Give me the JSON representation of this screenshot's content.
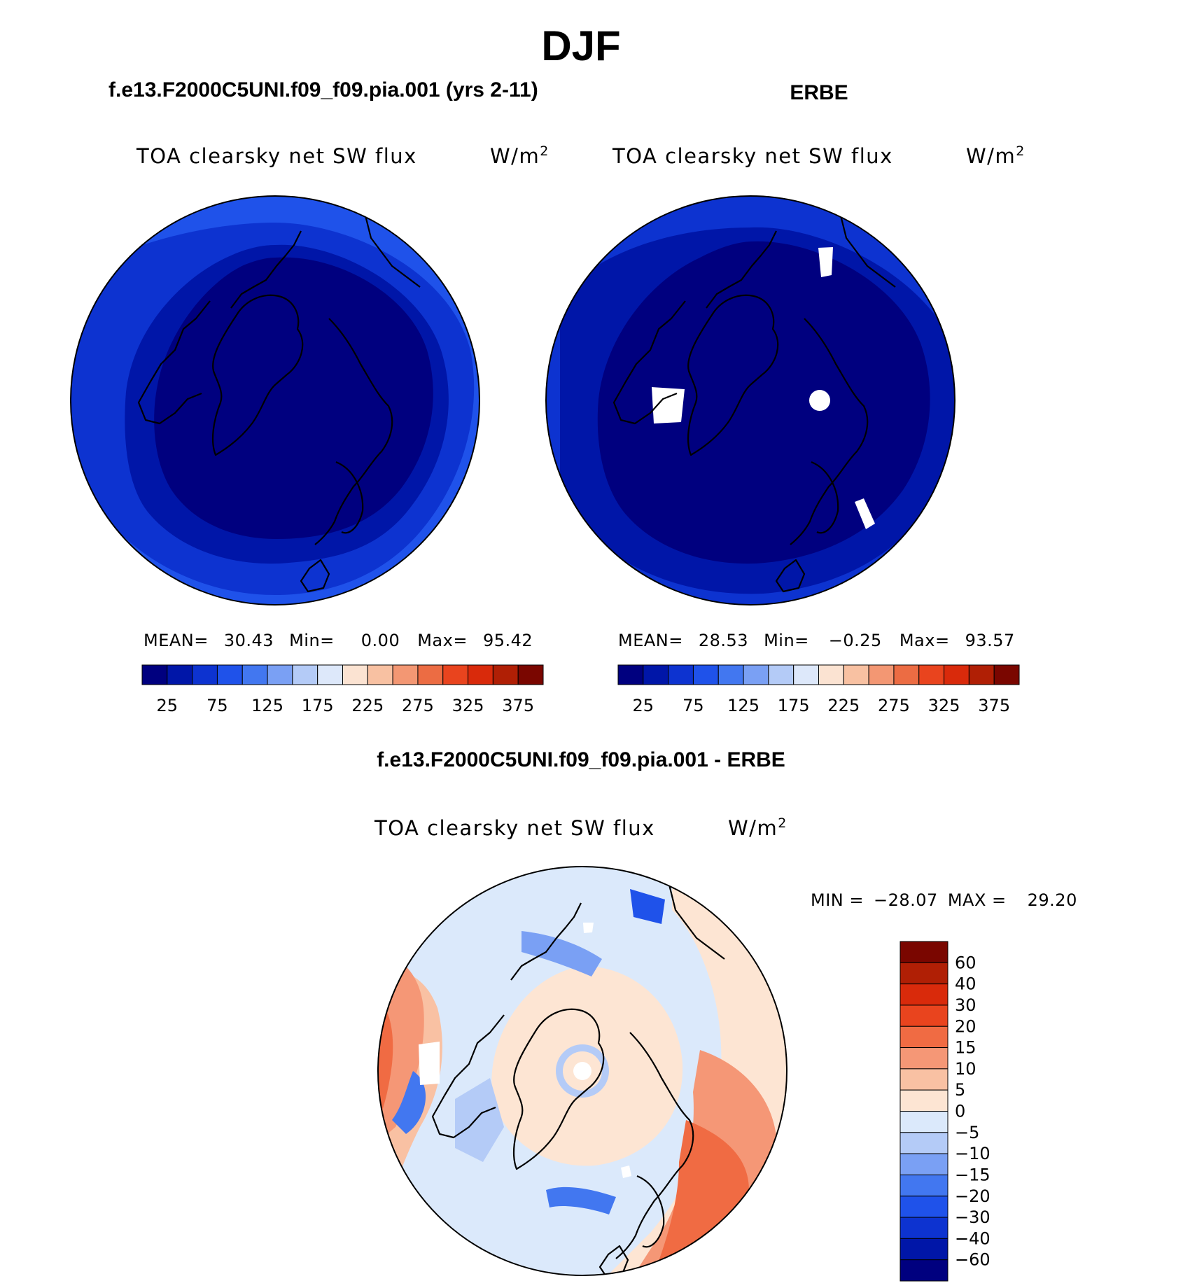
{
  "main_title": "DJF",
  "colors": {
    "model_scale": [
      "#00007f",
      "#0016a8",
      "#0d33d0",
      "#1f52ea",
      "#4277f0",
      "#7aa0f4",
      "#b4cbf7",
      "#dde8fa",
      "#fbe3d2",
      "#f8c1a2",
      "#f39773",
      "#ec6c43",
      "#e9441e",
      "#d92a0b",
      "#b01f05",
      "#7a0600"
    ],
    "diff_scale": [
      "#00007f",
      "#0016a8",
      "#0d33d0",
      "#1f52ea",
      "#4277f0",
      "#7aa0f4",
      "#b4cbf7",
      "#dbe9fb",
      "#fde5d3",
      "#f9c1a3",
      "#f59776",
      "#f06b43",
      "#e9441e",
      "#d92a0b",
      "#b01f05",
      "#7a0600"
    ]
  },
  "panels": [
    {
      "case_title": "f.e13.F2000C5UNI.f09_f09.pia.001 (yrs 2-11)",
      "variable": "TOA clearsky net SW flux",
      "units": "W/m",
      "units_sup": "2",
      "stats": {
        "mean_label": "MEAN=",
        "mean": "30.43",
        "min_label": "Min=",
        "min": "0.00",
        "max_label": "Max=",
        "max": "95.42"
      }
    },
    {
      "case_title": "ERBE",
      "variable": "TOA clearsky net SW flux",
      "units": "W/m",
      "units_sup": "2",
      "stats": {
        "mean_label": "MEAN=",
        "mean": "28.53",
        "min_label": "Min=",
        "min": "−0.25",
        "max_label": "Max=",
        "max": "93.57"
      }
    },
    {
      "case_title": "f.e13.F2000C5UNI.f09_f09.pia.001 - ERBE",
      "variable": "TOA clearsky net SW flux",
      "units": "W/m",
      "units_sup": "2",
      "stats": {
        "min_label": "MIN =",
        "min": "−28.07",
        "max_label": "MAX =",
        "max": "29.20"
      }
    }
  ],
  "chart_data": [
    {
      "type": "heatmap",
      "projection": "north-polar-stereographic",
      "title": "f.e13.F2000C5UNI.f09_f09.pia.001 (yrs 2-11)",
      "variable": "TOA clearsky net SW flux",
      "units": "W/m2",
      "season": "DJF",
      "colorbar_ticks": [
        25,
        75,
        125,
        175,
        225,
        275,
        325,
        375
      ],
      "levels": [
        0,
        25,
        50,
        75,
        100,
        125,
        150,
        175,
        200,
        225,
        250,
        275,
        300,
        325,
        350,
        375,
        400
      ],
      "mean": 30.43,
      "min": 0.0,
      "max": 95.42,
      "radial_profile": [
        {
          "ring": "pole to ~60N",
          "value": 12
        },
        {
          "ring": "~55N-60N",
          "value": 37
        },
        {
          "ring": "~50N-55N",
          "value": 62
        },
        {
          "ring": "~45N-50N",
          "value": 87
        }
      ]
    },
    {
      "type": "heatmap",
      "projection": "north-polar-stereographic",
      "title": "ERBE",
      "variable": "TOA clearsky net SW flux",
      "units": "W/m2",
      "season": "DJF",
      "colorbar_ticks": [
        25,
        75,
        125,
        175,
        225,
        275,
        325,
        375
      ],
      "levels": [
        0,
        25,
        50,
        75,
        100,
        125,
        150,
        175,
        200,
        225,
        250,
        275,
        300,
        325,
        350,
        375,
        400
      ],
      "mean": 28.53,
      "min": -0.25,
      "max": 93.57,
      "radial_profile": [
        {
          "ring": "pole to ~58N",
          "value": 12
        },
        {
          "ring": "~50N-58N",
          "value": 37
        },
        {
          "ring": "~45N-50N",
          "value": 62
        }
      ],
      "missing_data": [
        "north pole",
        "western Canada",
        "Baltic region",
        "eastern Siberia"
      ]
    },
    {
      "type": "heatmap",
      "projection": "north-polar-stereographic",
      "title": "f.e13.F2000C5UNI.f09_f09.pia.001 - ERBE",
      "variable": "TOA clearsky net SW flux",
      "units": "W/m2",
      "season": "DJF",
      "colorbar_ticks": [
        "60",
        "40",
        "30",
        "20",
        "15",
        "10",
        "5",
        "0",
        "−5",
        "−10",
        "−15",
        "−20",
        "−30",
        "−40",
        "−60"
      ],
      "levels": [
        -60,
        -40,
        -30,
        -20,
        -15,
        -10,
        -5,
        0,
        5,
        10,
        15,
        20,
        30,
        40,
        60
      ],
      "min": -28.07,
      "max": 29.2,
      "regions": [
        {
          "region": "central Arctic",
          "value": 3
        },
        {
          "region": "Canadian archipelago / Greenland",
          "value": -4
        },
        {
          "region": "mid-latitude ring",
          "value": -7
        },
        {
          "region": "North Atlantic / Europe",
          "value": 22
        },
        {
          "region": "North Pacific",
          "value": 17
        },
        {
          "region": "Labrador / Baltic strips",
          "value": -18
        }
      ]
    }
  ]
}
